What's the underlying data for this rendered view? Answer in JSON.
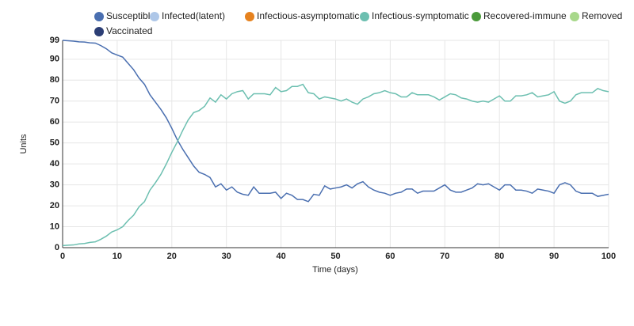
{
  "chart_data": {
    "type": "line",
    "xlabel": "Time (days)",
    "ylabel": "Units",
    "x": [
      0,
      1,
      2,
      3,
      4,
      5,
      6,
      7,
      8,
      9,
      10,
      11,
      12,
      13,
      14,
      15,
      16,
      17,
      18,
      19,
      20,
      21,
      22,
      23,
      24,
      25,
      26,
      27,
      28,
      29,
      30,
      31,
      32,
      33,
      34,
      35,
      36,
      37,
      38,
      39,
      40,
      41,
      42,
      43,
      44,
      45,
      46,
      47,
      48,
      49,
      50,
      51,
      52,
      53,
      54,
      55,
      56,
      57,
      58,
      59,
      60,
      61,
      62,
      63,
      64,
      65,
      66,
      67,
      68,
      69,
      70,
      71,
      72,
      73,
      74,
      75,
      76,
      77,
      78,
      79,
      80,
      81,
      82,
      83,
      84,
      85,
      86,
      87,
      88,
      89,
      90,
      91,
      92,
      93,
      94,
      95,
      96,
      97,
      98,
      99,
      100
    ],
    "series": [
      {
        "name": "Susceptible",
        "color": "#4a6fb0",
        "values": [
          99,
          98.8,
          98.6,
          98.3,
          98.2,
          97.8,
          97.7,
          96.5,
          95,
          93,
          92,
          91,
          88,
          85,
          81,
          78,
          73,
          69.5,
          66,
          62,
          57,
          51.5,
          47,
          43,
          39,
          36,
          35,
          33.5,
          29,
          30.5,
          27.5,
          29,
          26.5,
          25.5,
          25,
          29,
          26,
          26,
          26,
          26.5,
          23.5,
          26,
          25,
          23,
          23,
          22,
          25.5,
          25,
          29.5,
          28,
          28.5,
          29,
          30,
          28.5,
          30.5,
          31.5,
          29,
          27.5,
          26.5,
          26,
          25,
          26,
          26.5,
          28,
          28,
          26,
          27,
          27,
          27,
          28.5,
          30,
          27.5,
          26.5,
          26.5,
          27.5,
          28.5,
          30.5,
          30,
          30.5,
          29,
          27.5,
          30,
          30,
          27.5,
          27.5,
          27,
          26,
          28,
          27.5,
          27,
          26,
          30,
          31,
          30,
          27,
          26,
          26,
          26,
          24.5,
          25,
          25.5
        ]
      },
      {
        "name": "Infected(latent)",
        "color": "#aec7e8"
      },
      {
        "name": "Infectious-asymptomatic",
        "color": "#e6821e"
      },
      {
        "name": "Infectious-symptomatic",
        "color": "#6cbfb0",
        "values": [
          1,
          1.2,
          1.3,
          1.8,
          2,
          2.5,
          2.8,
          4,
          5.5,
          7.5,
          8.5,
          10,
          13,
          15.5,
          19.5,
          22,
          27.5,
          31,
          35,
          40,
          45.5,
          50.5,
          56,
          61,
          64.5,
          65.5,
          67.5,
          71.5,
          69.5,
          73,
          71,
          73.5,
          74.5,
          75,
          71,
          73.5,
          73.5,
          73.5,
          73,
          76.5,
          74.5,
          75,
          77,
          77,
          78,
          74,
          73.5,
          71,
          72,
          71.5,
          71,
          70,
          71,
          69.5,
          68.5,
          71,
          72,
          73.5,
          74,
          75,
          74,
          73.5,
          72,
          72,
          74,
          73,
          73,
          73,
          72,
          70.5,
          72,
          73.5,
          73,
          71.5,
          71,
          70,
          69.5,
          70,
          69.5,
          71,
          72.5,
          70,
          70,
          72.5,
          72.5,
          73,
          74,
          72,
          72.5,
          73,
          74.5,
          70,
          69,
          70,
          73,
          74,
          74,
          74,
          76,
          75,
          74.5
        ]
      },
      {
        "name": "Recovered-immune",
        "color": "#4a9a3a"
      },
      {
        "name": "Removed",
        "color": "#a8d88b"
      },
      {
        "name": "Vaccinated",
        "color": "#2c3e75"
      }
    ],
    "xlim": [
      0,
      100
    ],
    "xticks": [
      0,
      10,
      20,
      30,
      40,
      50,
      60,
      70,
      80,
      90,
      100
    ],
    "ylim": [
      0,
      99
    ],
    "yticks": [
      0,
      10,
      20,
      30,
      40,
      50,
      60,
      70,
      80,
      90,
      99
    ],
    "grid": true
  }
}
